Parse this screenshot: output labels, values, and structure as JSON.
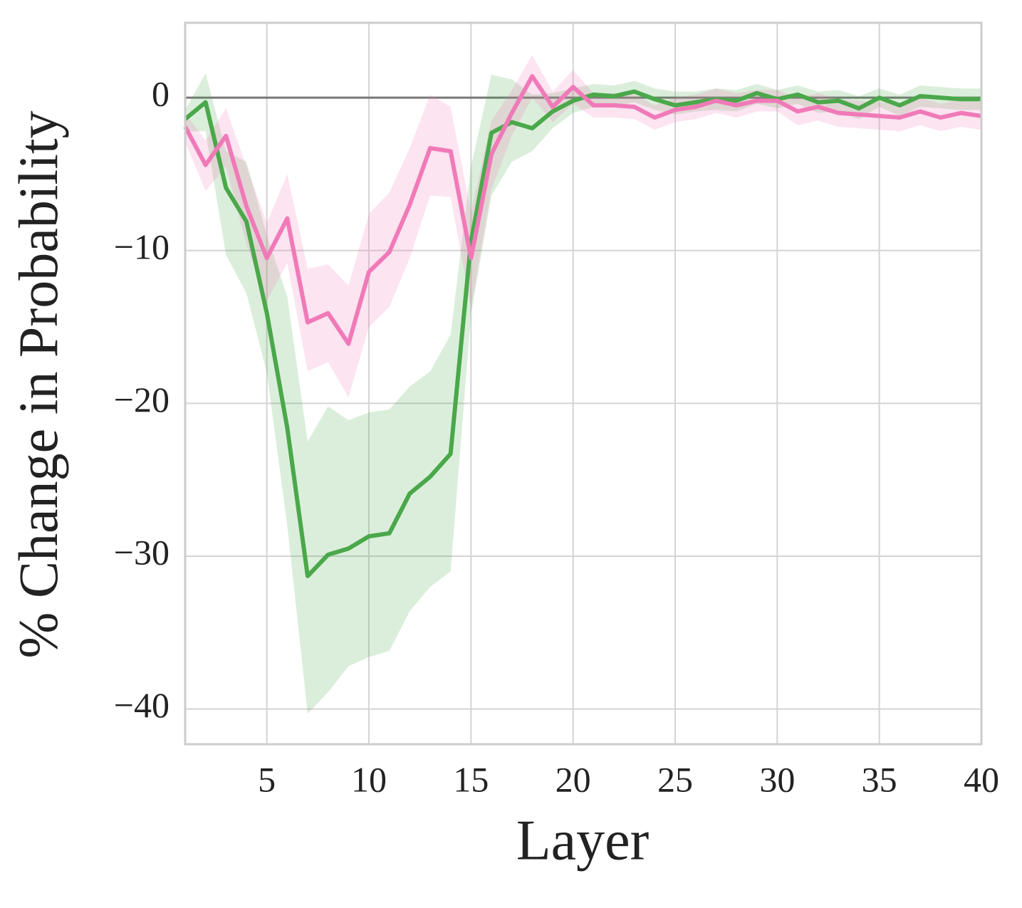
{
  "chart_data": {
    "type": "line",
    "x_label": "Layer",
    "y_label": "% Change in Probability",
    "x": [
      1,
      2,
      3,
      4,
      5,
      6,
      7,
      8,
      9,
      10,
      11,
      12,
      13,
      14,
      15,
      16,
      17,
      18,
      19,
      20,
      21,
      22,
      23,
      24,
      25,
      26,
      27,
      28,
      29,
      30,
      31,
      32,
      33,
      34,
      35,
      36,
      37,
      38,
      39,
      40
    ],
    "series": [
      {
        "color": "#4aa84a",
        "values": [
          -1.4,
          -0.3,
          -5.9,
          -8.1,
          -14.1,
          -21.6,
          -31.3,
          -29.9,
          -29.5,
          -28.7,
          -28.5,
          -25.9,
          -24.8,
          -23.3,
          -9.4,
          -2.3,
          -1.6,
          -2.0,
          -0.9,
          -0.2,
          0.2,
          0.1,
          0.4,
          -0.1,
          -0.5,
          -0.3,
          -0.1,
          -0.2,
          0.3,
          -0.1,
          0.2,
          -0.3,
          -0.2,
          -0.7,
          0,
          -0.5,
          0.1,
          0,
          -0.1,
          -0.1
        ],
        "upper": [
          -0.8,
          1.6,
          -3.5,
          -4.2,
          -9,
          -13,
          -22.5,
          -20.2,
          -21.1,
          -20.6,
          -20.4,
          -18.9,
          -17.9,
          -15.5,
          -4.5,
          1.5,
          1.2,
          0.2,
          0.3,
          0.6,
          0.9,
          0.8,
          1.1,
          0.6,
          0.4,
          0.4,
          0.6,
          0.5,
          0.9,
          0.5,
          0.8,
          0.4,
          0.5,
          0.1,
          0.6,
          0.2,
          0.8,
          0.7,
          0.6,
          0.6
        ],
        "lower": [
          -2.2,
          -2.2,
          -10.3,
          -12.8,
          -18,
          -28,
          -40.3,
          -38.9,
          -37.2,
          -36.6,
          -36.2,
          -33.6,
          -32.0,
          -31.0,
          -14.2,
          -6.4,
          -4.2,
          -3.5,
          -2.0,
          -1.0,
          -0.6,
          -0.6,
          -0.3,
          -0.8,
          -1.1,
          -0.9,
          -0.8,
          -0.9,
          -0.4,
          -0.7,
          -0.4,
          -1.0,
          -0.9,
          -1.4,
          -0.6,
          -1.2,
          -0.6,
          -0.7,
          -0.8,
          -0.8
        ]
      },
      {
        "color": "#f07ab8",
        "values": [
          -1.9,
          -4.4,
          -2.5,
          -7.1,
          -10.5,
          -7.9,
          -14.7,
          -14.1,
          -16.1,
          -11.4,
          -10.1,
          -7.0,
          -3.3,
          -3.5,
          -10.5,
          -3.7,
          -1.0,
          1.4,
          -0.6,
          0.7,
          -0.5,
          -0.5,
          -0.6,
          -1.3,
          -0.8,
          -0.6,
          -0.2,
          -0.5,
          -0.2,
          -0.2,
          -0.9,
          -0.6,
          -1.0,
          -1.1,
          -1.2,
          -1.3,
          -0.9,
          -1.3,
          -1.0,
          -1.2
        ],
        "upper": [
          -1.0,
          -2.8,
          -0.7,
          -4.5,
          -8.2,
          -5.0,
          -11.2,
          -10.9,
          -12.3,
          -7.6,
          -6.2,
          -3.3,
          0.2,
          -0.6,
          -7.5,
          -1.5,
          0.5,
          2.8,
          0.4,
          1.8,
          0.3,
          0.3,
          0.2,
          -0.5,
          0.0,
          0.2,
          0.6,
          0.3,
          0.5,
          0.5,
          0.0,
          0.3,
          -0.1,
          -0.2,
          -0.3,
          -0.4,
          0.0,
          -0.4,
          -0.1,
          -0.3
        ],
        "lower": [
          -2.9,
          -6.1,
          -4.5,
          -9.6,
          -13.3,
          -10.8,
          -17.9,
          -17.3,
          -19.6,
          -15.0,
          -13.7,
          -10.5,
          -6.4,
          -6.5,
          -13.8,
          -6.0,
          -2.5,
          0.0,
          -1.6,
          -0.4,
          -1.3,
          -1.3,
          -1.4,
          -2.1,
          -1.6,
          -1.4,
          -1.0,
          -1.3,
          -0.9,
          -0.9,
          -1.8,
          -1.5,
          -1.9,
          -2.0,
          -2.1,
          -2.2,
          -1.8,
          -2.2,
          -1.9,
          -2.1
        ]
      }
    ],
    "reference_line": 0,
    "xlim": [
      1,
      40
    ],
    "ylim": [
      -42.3,
      4.9
    ],
    "xticks": [
      5,
      10,
      15,
      20,
      25,
      30,
      35,
      40
    ],
    "yticks": [
      0,
      {
        "value": -10,
        "label": "−10"
      },
      {
        "value": -20,
        "label": "−20"
      },
      {
        "value": -30,
        "label": "−30"
      },
      {
        "value": -40,
        "label": "−40"
      }
    ],
    "grid": true
  }
}
